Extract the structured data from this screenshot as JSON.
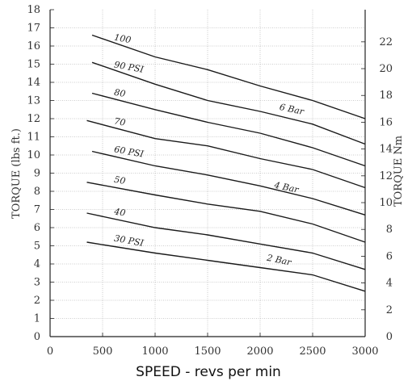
{
  "chart_data": {
    "type": "line",
    "xlabel": "SPEED - revs per min",
    "ylabel": "TORQUE (lbs ft.)",
    "ylabel_right": "TORQUE Nm",
    "xlim": [
      0,
      3000
    ],
    "ylim": [
      0,
      18
    ],
    "ylim_right": [
      0,
      24.4
    ],
    "x_ticks": [
      "0",
      "500",
      "1000",
      "1500",
      "2000",
      "2500",
      "3000"
    ],
    "y_ticks": [
      "0",
      "1",
      "2",
      "3",
      "4",
      "5",
      "6",
      "7",
      "8",
      "9",
      "10",
      "11",
      "12",
      "13",
      "14",
      "15",
      "16",
      "17",
      "18"
    ],
    "y_ticks_right": [
      "0",
      "2",
      "4",
      "6",
      "8",
      "10",
      "12",
      "14",
      "16",
      "18",
      "20",
      "22"
    ],
    "grid": true,
    "series": [
      {
        "name": "100",
        "x": [
          400,
          1000,
          1500,
          2000,
          2500,
          3000
        ],
        "values": [
          16.6,
          15.4,
          14.7,
          13.8,
          13.0,
          12.0
        ]
      },
      {
        "name": "90 PSI",
        "x": [
          400,
          1000,
          1500,
          2000,
          2500,
          3000
        ],
        "values": [
          15.1,
          13.9,
          13.0,
          12.4,
          11.7,
          10.6
        ]
      },
      {
        "name": "80",
        "x": [
          400,
          1000,
          1500,
          2000,
          2500,
          3000
        ],
        "values": [
          13.4,
          12.5,
          11.8,
          11.2,
          10.4,
          9.4
        ]
      },
      {
        "name": "70",
        "x": [
          350,
          1000,
          1500,
          2000,
          2500,
          3000
        ],
        "values": [
          11.9,
          10.9,
          10.5,
          9.8,
          9.2,
          8.2
        ]
      },
      {
        "name": "60 PSI",
        "x": [
          400,
          1000,
          1500,
          2000,
          2500,
          3000
        ],
        "values": [
          10.2,
          9.4,
          8.9,
          8.3,
          7.6,
          6.7
        ]
      },
      {
        "name": "50",
        "x": [
          350,
          1000,
          1500,
          2000,
          2500,
          3000
        ],
        "values": [
          8.5,
          7.8,
          7.3,
          6.9,
          6.2,
          5.2
        ]
      },
      {
        "name": "40",
        "x": [
          350,
          1000,
          1500,
          2000,
          2500,
          3000
        ],
        "values": [
          6.8,
          6.0,
          5.6,
          5.1,
          4.6,
          3.7
        ]
      },
      {
        "name": "30 PSI",
        "x": [
          350,
          1000,
          1500,
          2000,
          2500,
          3000
        ],
        "values": [
          5.2,
          4.6,
          4.2,
          3.8,
          3.4,
          2.5
        ]
      }
    ],
    "annotations": [
      {
        "text": "6 Bar",
        "x": 2180,
        "y": 12.5
      },
      {
        "text": "4 Bar",
        "x": 2130,
        "y": 8.2
      },
      {
        "text": "2 Bar",
        "x": 2060,
        "y": 4.2
      }
    ]
  }
}
